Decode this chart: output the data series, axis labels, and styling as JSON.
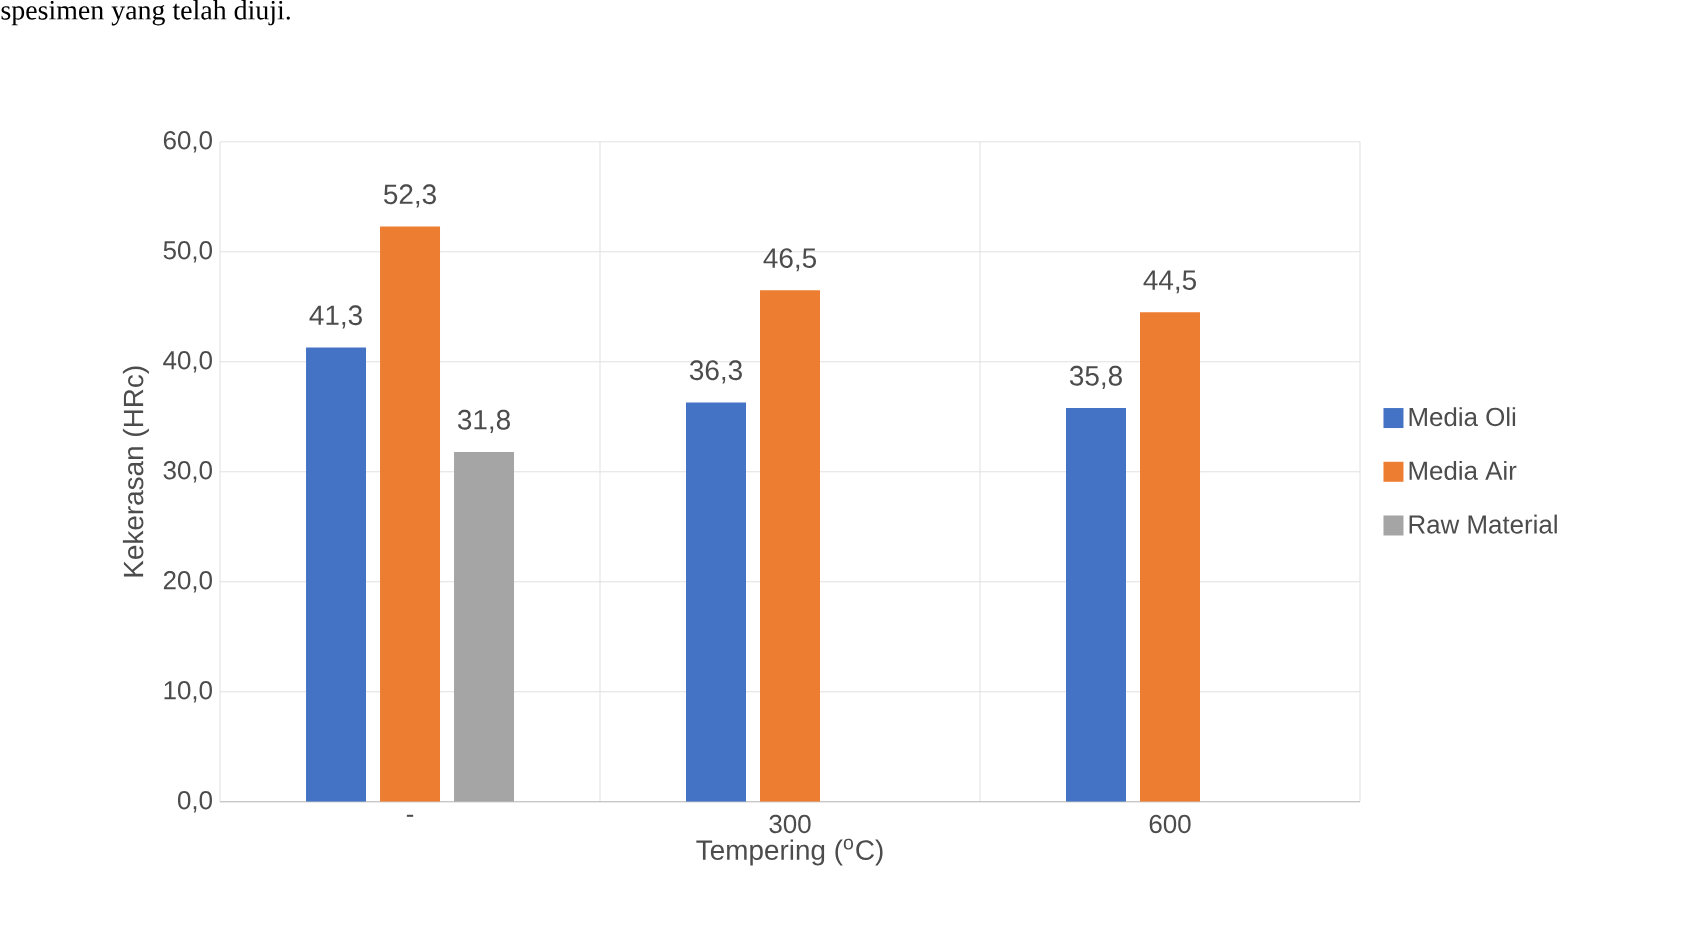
{
  "chart_data": {
    "type": "bar",
    "xlabel": "Tempering ($^{o}$C)",
    "ylabel": "Kekerasan (HRc)",
    "annotations": [
      "spesimen yang telah diuji."
    ],
    "categories": [
      "-",
      "300",
      "600"
    ],
    "series": [
      {
        "name": "Media Oli",
        "color": "#4472c4",
        "values": [
          41.3,
          36.3,
          35.8
        ],
        "value_labels": [
          "41,3",
          "36,3",
          "35,8"
        ]
      },
      {
        "name": "Media Air",
        "color": "#ed7d31",
        "values": [
          52.3,
          46.5,
          44.5
        ],
        "value_labels": [
          "52,3",
          "46,5",
          "44,5"
        ]
      },
      {
        "name": "Raw Material",
        "color": "#a5a5a5",
        "values": [
          31.8,
          null,
          null
        ],
        "value_labels": [
          "31,8",
          null,
          null
        ]
      }
    ],
    "ylim": [
      0,
      60
    ],
    "yticks": [
      {
        "value": 0,
        "label": "0,0"
      },
      {
        "value": 10,
        "label": "10,0"
      },
      {
        "value": 20,
        "label": "20,0"
      },
      {
        "value": 30,
        "label": "30,0"
      },
      {
        "value": 40,
        "label": "40,0"
      },
      {
        "value": 50,
        "label": "50,0"
      },
      {
        "value": 60,
        "label": "60,0"
      }
    ],
    "grid": true,
    "legend": "right"
  }
}
